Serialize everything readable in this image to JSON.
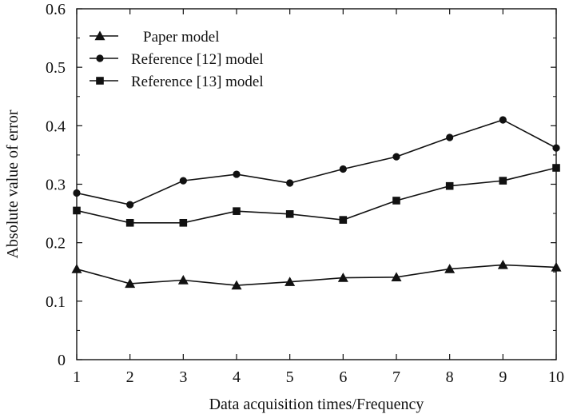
{
  "chart_data": {
    "type": "line",
    "title": "",
    "xlabel": "Data acquisition times/Frequency",
    "ylabel": "Absolute value of error",
    "x": [
      1,
      2,
      3,
      4,
      5,
      6,
      7,
      8,
      9,
      10
    ],
    "xlim": [
      1,
      10
    ],
    "ylim": [
      0,
      0.6
    ],
    "x_ticks": [
      "1",
      "2",
      "3",
      "4",
      "5",
      "6",
      "7",
      "8",
      "9",
      "10"
    ],
    "y_ticks": [
      "0",
      "0.1",
      "0.2",
      "0.3",
      "0.4",
      "0.5",
      "0.6"
    ],
    "grid": false,
    "legend_position": "top-left",
    "series": [
      {
        "name": "Paper model",
        "marker": "triangle",
        "values": [
          0.155,
          0.13,
          0.136,
          0.127,
          0.133,
          0.14,
          0.141,
          0.155,
          0.162,
          0.158
        ]
      },
      {
        "name": "Reference [12] model",
        "marker": "circle",
        "values": [
          0.285,
          0.265,
          0.306,
          0.317,
          0.302,
          0.326,
          0.347,
          0.38,
          0.41,
          0.362
        ]
      },
      {
        "name": "Reference [13] model",
        "marker": "square",
        "values": [
          0.255,
          0.234,
          0.234,
          0.254,
          0.249,
          0.239,
          0.272,
          0.297,
          0.306,
          0.328
        ]
      }
    ],
    "colors": {
      "line": "#111111",
      "axis": "#111111",
      "background": "#ffffff"
    }
  }
}
